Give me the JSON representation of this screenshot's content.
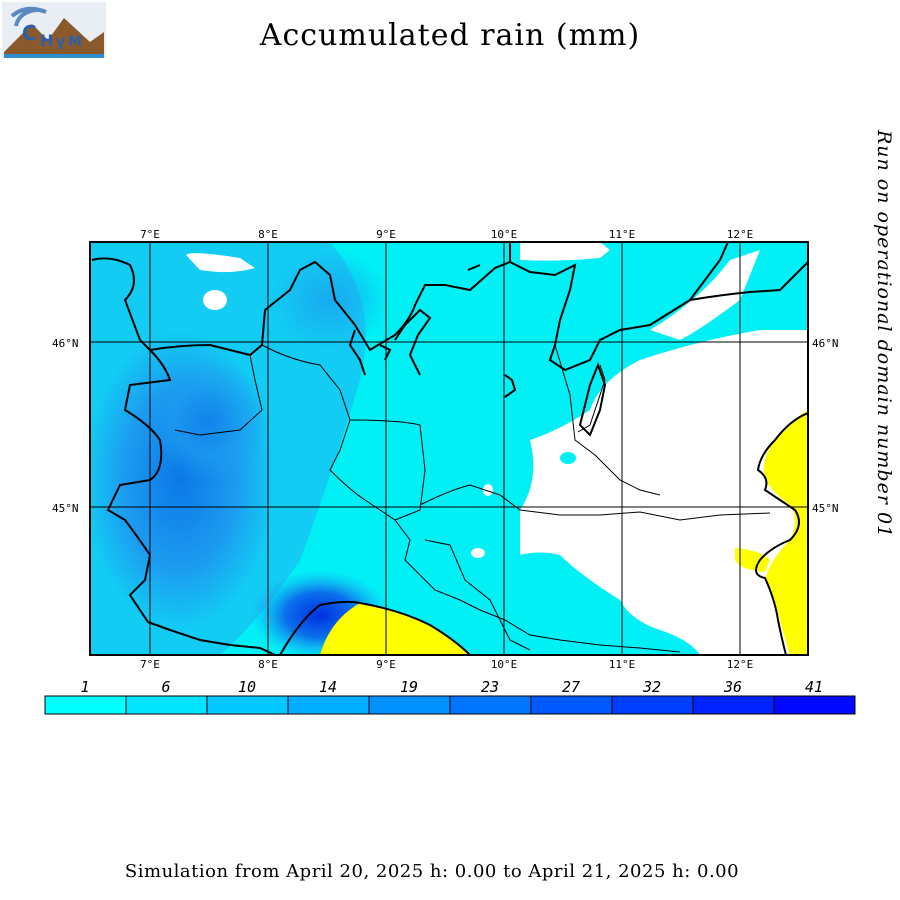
{
  "title": "Accumulated rain (mm)",
  "side_note": "Run on operational domain number 01",
  "footer": "Simulation from April 20, 2025 h: 0.00 to April 21, 2025 h: 0.00",
  "logo": {
    "text": "CHyM",
    "icon": "chym-logo-icon"
  },
  "map": {
    "lon_labels": [
      "7°E",
      "8°E",
      "9°E",
      "10°E",
      "11°E",
      "12°E"
    ],
    "lat_labels": [
      "46°N",
      "45°N"
    ],
    "colors": {
      "no_rain": "#ffffff",
      "sea": "#ffff00",
      "coast": "#000000",
      "base_rain": "#00f0f0"
    }
  },
  "colorbar": {
    "labels": [
      "1",
      "6",
      "10",
      "14",
      "19",
      "23",
      "27",
      "32",
      "36",
      "41"
    ],
    "colors": [
      "#00ffff",
      "#00e4ff",
      "#00c8ff",
      "#00adff",
      "#0091ff",
      "#0076ff",
      "#005aff",
      "#003fff",
      "#0023ff",
      "#0008ff"
    ]
  }
}
